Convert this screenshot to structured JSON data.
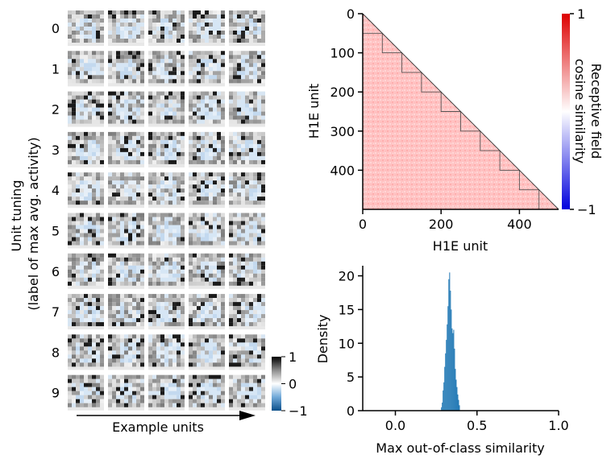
{
  "chart_data": [
    {
      "type": "heatmap",
      "panel": "unit-tuning-grid",
      "ylabel_line1": "Unit tuning",
      "ylabel_line2": "(label of max avg. activity)",
      "row_labels": [
        "0",
        "1",
        "2",
        "3",
        "4",
        "5",
        "6",
        "7",
        "8",
        "9"
      ],
      "columns": 5,
      "xlabel": "Example units",
      "colorbar": {
        "ticks": [
          "1",
          "0",
          "−1"
        ],
        "range": [
          -1,
          1
        ]
      }
    },
    {
      "type": "heatmap",
      "panel": "receptive-field-similarity",
      "xlabel": "H1E unit",
      "ylabel": "H1E unit",
      "x_ticks": [
        "0",
        "200",
        "400"
      ],
      "y_ticks": [
        "0",
        "100",
        "200",
        "300",
        "400"
      ],
      "x_range": [
        0,
        500
      ],
      "y_range": [
        0,
        500
      ],
      "block_size": 50,
      "n_blocks": 10,
      "colorbar_label_line1": "Receptive field",
      "colorbar_label_line2": "cosine similarity",
      "colorbar_ticks": [
        "1",
        "−1"
      ],
      "colorbar_range": [
        -1,
        1
      ],
      "colors": {
        "high": "#dd0000",
        "mid": "#ffffff",
        "low": "#0000dd",
        "fill": "#ffc8c8"
      }
    },
    {
      "type": "bar",
      "panel": "histogram",
      "xlabel": "Max out-of-class similarity",
      "ylabel": "Density",
      "x_ticks": [
        "0.0",
        "0.5",
        "1.0"
      ],
      "y_ticks": [
        "0",
        "5",
        "10",
        "15",
        "20"
      ],
      "xlim": [
        -0.2,
        1.0
      ],
      "ylim": [
        0,
        21.5
      ],
      "bin_width": 0.005,
      "bins_start": 0.28,
      "values": [
        0.5,
        1.2,
        3.0,
        4.2,
        6.5,
        8.5,
        10.5,
        12.8,
        15.5,
        19.5,
        20.5,
        17.8,
        15.0,
        12.2,
        11.5,
        12.0,
        9.2,
        6.2,
        4.6,
        3.5,
        2.4,
        1.6,
        0.8
      ],
      "color": "#1f77b4"
    }
  ]
}
